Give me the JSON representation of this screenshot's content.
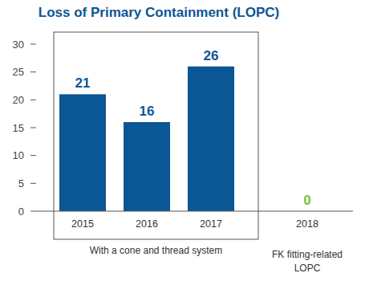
{
  "chart_data": {
    "type": "bar",
    "title": "Loss of Primary Containment (LOPC)",
    "categories": [
      "2015",
      "2016",
      "2017",
      "2018"
    ],
    "values": [
      21,
      16,
      26,
      0
    ],
    "colors": [
      "#0b5694",
      "#0b5694",
      "#0b5694",
      "#7dc143"
    ],
    "ylim": [
      0,
      30
    ],
    "yticks": [
      0,
      5,
      10,
      15,
      20,
      25,
      30
    ],
    "grid": false,
    "data_labels": true,
    "annotations": [
      "With a cone and thread system",
      "FK fitting-related LOPC"
    ]
  }
}
